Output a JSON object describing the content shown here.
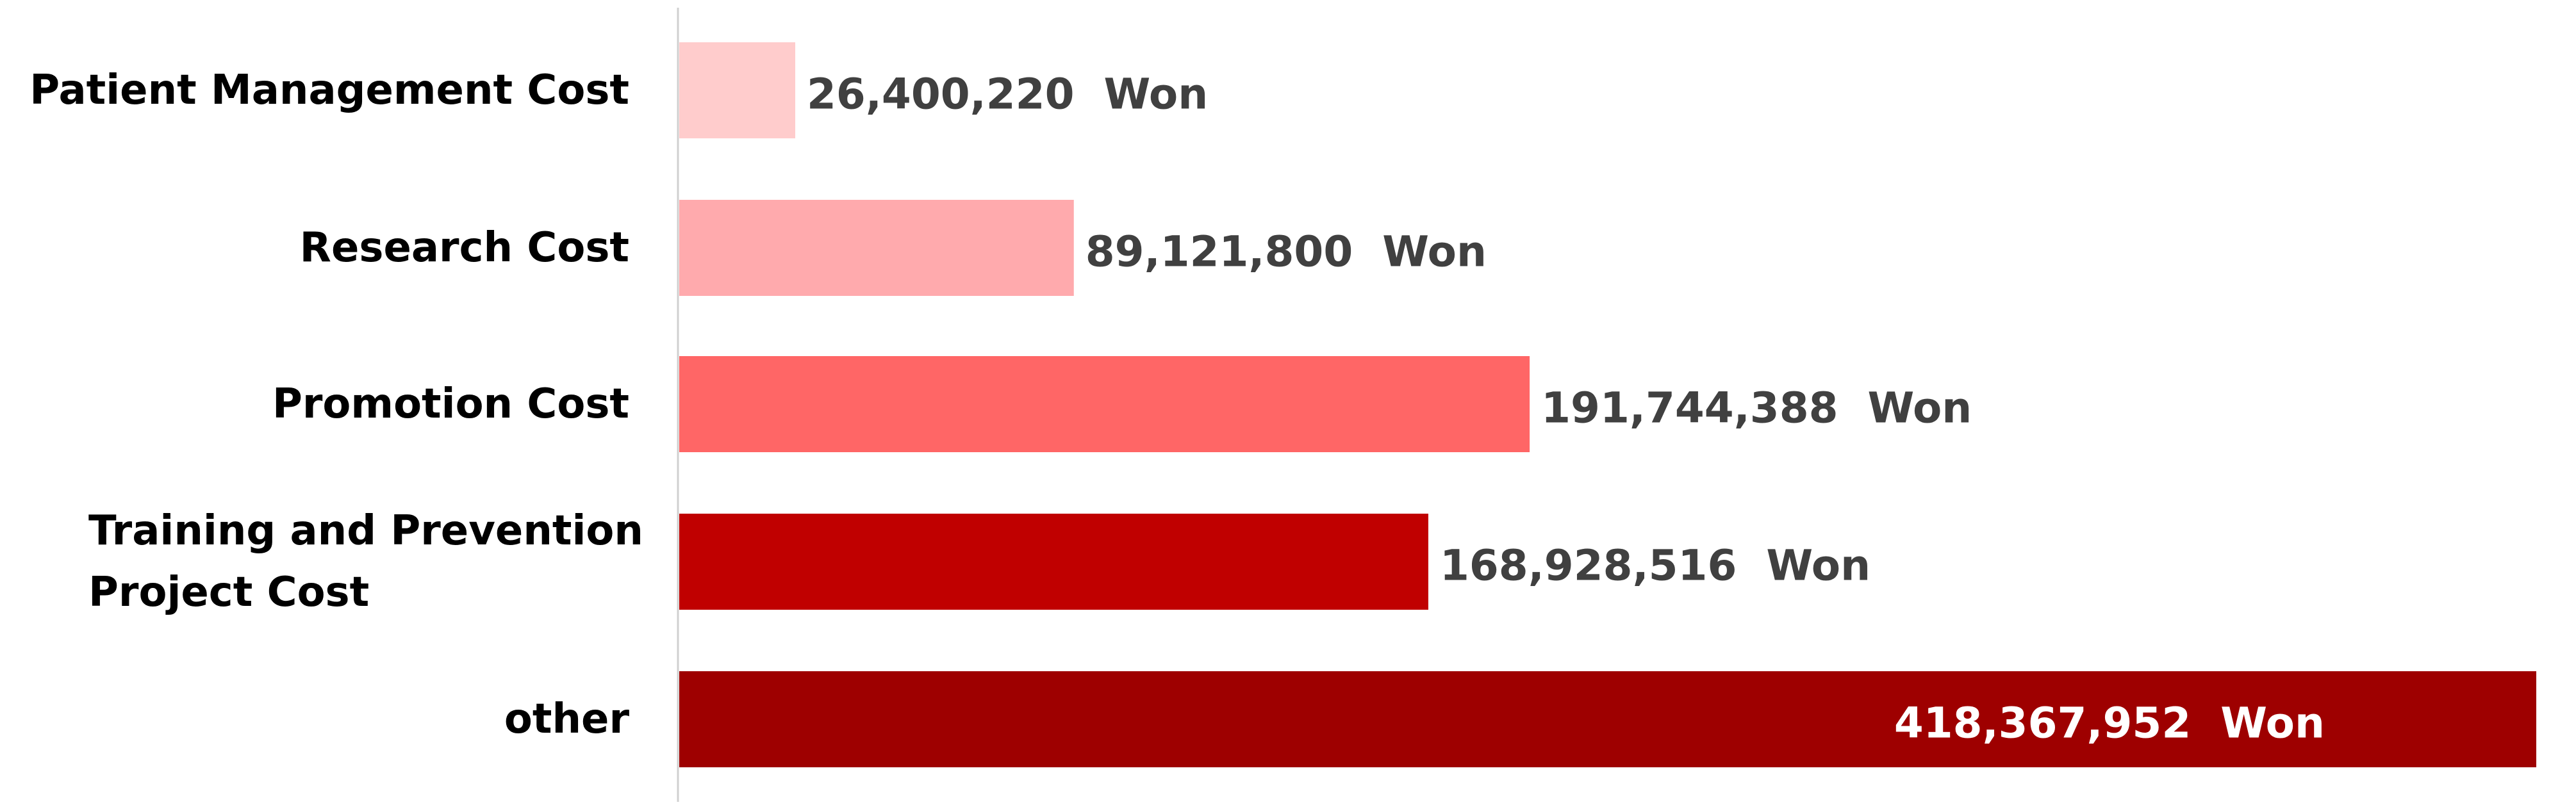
{
  "chart_data": {
    "type": "bar",
    "orientation": "horizontal",
    "title": "",
    "xlabel": "",
    "ylabel": "",
    "grid": false,
    "legend": "none",
    "xlim": [
      0,
      418367952
    ],
    "categories": [
      [
        "Patient Management Cost"
      ],
      [
        "Research Cost"
      ],
      [
        "Promotion Cost"
      ],
      [
        "Training and Prevention",
        "Project Cost"
      ],
      [
        "other"
      ]
    ],
    "values": [
      26400220,
      89121800,
      191744388,
      168928516,
      418367952
    ],
    "data_labels": [
      "26,400,220  Won",
      "89,121,800  Won",
      "191,744,388  Won",
      "168,928,516  Won",
      "418,367,952  Won"
    ],
    "bar_colors": [
      "#ffcccc",
      "#ffaaad",
      "#ff6666",
      "#c00000",
      "#9e0000"
    ],
    "label_colors": [
      "#404040",
      "#404040",
      "#404040",
      "#404040",
      "#ffffff"
    ],
    "axis_color": "#d0d0d0"
  }
}
